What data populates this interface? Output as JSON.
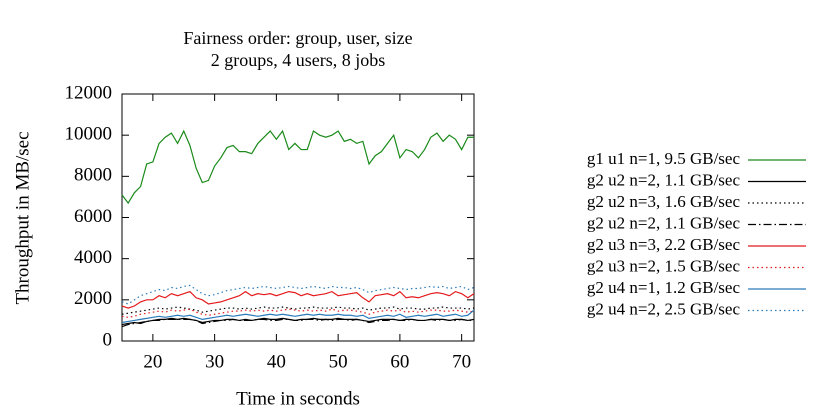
{
  "chart_data": {
    "type": "line",
    "title": "Fairness order: group, user, size",
    "subtitle": "2 groups, 4 users, 8 jobs",
    "x_label": "Time in seconds",
    "y_label": "Throughput in MB/sec",
    "xlim": [
      15,
      72
    ],
    "xticks": [
      20,
      30,
      40,
      50,
      60,
      70
    ],
    "ylim": [
      0,
      12000
    ],
    "yticks": [
      0,
      2000,
      4000,
      6000,
      8000,
      10000,
      12000
    ],
    "grid": false,
    "legend": "right",
    "x": [
      15,
      16,
      17,
      18,
      19,
      20,
      21,
      22,
      23,
      24,
      25,
      26,
      27,
      28,
      29,
      30,
      31,
      32,
      33,
      34,
      35,
      36,
      37,
      38,
      39,
      40,
      41,
      42,
      43,
      44,
      45,
      46,
      47,
      48,
      49,
      50,
      51,
      52,
      53,
      54,
      55,
      56,
      57,
      58,
      59,
      60,
      61,
      62,
      63,
      64,
      65,
      66,
      67,
      68,
      69,
      70,
      71,
      72
    ],
    "series": [
      {
        "name": "g1 u1 n=1, 9.5 GB/sec",
        "color": "#1a8a1a",
        "dash": "solid",
        "values": [
          7100,
          6700,
          7200,
          7500,
          8600,
          8700,
          9600,
          9900,
          10100,
          9600,
          10200,
          9500,
          8400,
          7700,
          7800,
          8500,
          8900,
          9400,
          9500,
          9200,
          9200,
          9100,
          9600,
          9900,
          10200,
          9800,
          10200,
          9300,
          9600,
          9300,
          9300,
          10200,
          10000,
          9900,
          10000,
          10200,
          9700,
          9800,
          9600,
          9700,
          8600,
          9000,
          9200,
          9600,
          10000,
          8900,
          9300,
          9200,
          8900,
          9300,
          9900,
          10100,
          9700,
          10000,
          9800,
          9300,
          9900,
          9900
        ]
      },
      {
        "name": "g2 u2 n=2, 1.1 GB/sec",
        "color": "#000000",
        "dash": "solid",
        "values": [
          800,
          850,
          900,
          850,
          950,
          1000,
          1050,
          1050,
          1100,
          1050,
          1100,
          1050,
          1000,
          900,
          950,
          1000,
          1000,
          1050,
          1050,
          1000,
          1050,
          1000,
          1050,
          1100,
          1050,
          1050,
          1100,
          1050,
          1000,
          1050,
          1050,
          1100,
          1050,
          1050,
          1050,
          1100,
          1050,
          1050,
          1050,
          1000,
          950,
          1000,
          1050,
          1050,
          1050,
          1000,
          1050,
          1050,
          1000,
          1000,
          1050,
          1050,
          1050,
          1000,
          1050,
          1050,
          1000,
          1050
        ]
      },
      {
        "name": "g2 u2 n=3, 1.6 GB/sec",
        "color": "#000000",
        "dash": "dotted",
        "values": [
          1300,
          1350,
          1400,
          1450,
          1500,
          1550,
          1600,
          1550,
          1600,
          1650,
          1600,
          1550,
          1500,
          1400,
          1450,
          1500,
          1550,
          1600,
          1600,
          1550,
          1600,
          1550,
          1600,
          1650,
          1600,
          1600,
          1650,
          1600,
          1550,
          1600,
          1600,
          1650,
          1600,
          1600,
          1600,
          1650,
          1600,
          1600,
          1550,
          1600,
          1500,
          1550,
          1600,
          1600,
          1650,
          1550,
          1600,
          1600,
          1550,
          1550,
          1600,
          1600,
          1650,
          1600,
          1600,
          1600,
          1550,
          1600
        ]
      },
      {
        "name": "g2 u2 n=2, 1.1 GB/sec",
        "color": "#000000",
        "dash": "dashdot",
        "values": [
          700,
          800,
          850,
          900,
          950,
          1000,
          1000,
          1050,
          1050,
          1050,
          1050,
          1050,
          1000,
          850,
          900,
          950,
          1000,
          1000,
          1050,
          1000,
          1000,
          1000,
          1050,
          1050,
          1000,
          1000,
          1050,
          1050,
          1000,
          1000,
          1050,
          1050,
          1000,
          1050,
          1000,
          1050,
          1050,
          1000,
          1050,
          1000,
          900,
          950,
          1000,
          1000,
          1050,
          1000,
          1000,
          1050,
          1000,
          1000,
          1050,
          1000,
          1050,
          1000,
          1000,
          1050,
          1000,
          1000
        ]
      },
      {
        "name": "g2 u3 n=3, 2.2 GB/sec",
        "color": "#e41a1c",
        "dash": "solid",
        "values": [
          1700,
          1600,
          1700,
          1900,
          2000,
          2000,
          2200,
          2100,
          2300,
          2200,
          2300,
          2400,
          2100,
          2000,
          1800,
          1850,
          1900,
          2000,
          2100,
          2200,
          2400,
          2200,
          2300,
          2250,
          2300,
          2200,
          2300,
          2400,
          2350,
          2200,
          2300,
          2200,
          2250,
          2300,
          2400,
          2200,
          2250,
          2300,
          2350,
          2100,
          1900,
          2200,
          2250,
          2300,
          2200,
          2400,
          2100,
          2150,
          2100,
          2200,
          2300,
          2350,
          2300,
          2200,
          2400,
          2300,
          2100,
          2300
        ]
      },
      {
        "name": "g2 u3 n=2, 1.5 GB/sec",
        "color": "#e41a1c",
        "dash": "dotted",
        "values": [
          1200,
          1150,
          1200,
          1300,
          1350,
          1400,
          1450,
          1400,
          1500,
          1450,
          1500,
          1550,
          1400,
          1300,
          1250,
          1300,
          1350,
          1400,
          1450,
          1450,
          1500,
          1450,
          1500,
          1450,
          1500,
          1450,
          1500,
          1550,
          1500,
          1450,
          1500,
          1450,
          1500,
          1450,
          1550,
          1450,
          1500,
          1500,
          1450,
          1400,
          1300,
          1400,
          1450,
          1500,
          1450,
          1500,
          1400,
          1450,
          1400,
          1450,
          1500,
          1500,
          1450,
          1450,
          1500,
          1450,
          1400,
          1450
        ]
      },
      {
        "name": "g2 u4 n=1, 1.2 GB/sec",
        "color": "#2b7bba",
        "dash": "solid",
        "values": [
          900,
          950,
          1000,
          1050,
          1100,
          1150,
          1200,
          1150,
          1200,
          1250,
          1200,
          1250,
          1150,
          1050,
          1100,
          1150,
          1200,
          1250,
          1200,
          1250,
          1300,
          1250,
          1200,
          1250,
          1300,
          1250,
          1300,
          1250,
          1200,
          1250,
          1300,
          1250,
          1300,
          1250,
          1250,
          1300,
          1250,
          1250,
          1200,
          1250,
          1100,
          1150,
          1200,
          1250,
          1200,
          1300,
          1150,
          1200,
          1250,
          1200,
          1250,
          1300,
          1200,
          1250,
          1300,
          1200,
          1250,
          1500
        ]
      },
      {
        "name": "g2 u4 n=2, 2.5 GB/sec",
        "color": "#2b7bba",
        "dash": "dotted",
        "values": [
          1900,
          1800,
          2000,
          2200,
          2300,
          2400,
          2500,
          2450,
          2600,
          2550,
          2650,
          2700,
          2500,
          2300,
          2200,
          2250,
          2350,
          2450,
          2500,
          2550,
          2600,
          2550,
          2600,
          2650,
          2600,
          2550,
          2600,
          2650,
          2600,
          2550,
          2600,
          2650,
          2600,
          2550,
          2650,
          2600,
          2600,
          2550,
          2600,
          2500,
          2350,
          2450,
          2500,
          2550,
          2600,
          2550,
          2500,
          2550,
          2550,
          2600,
          2650,
          2600,
          2650,
          2550,
          2600,
          2650,
          2500,
          2600
        ]
      }
    ]
  }
}
